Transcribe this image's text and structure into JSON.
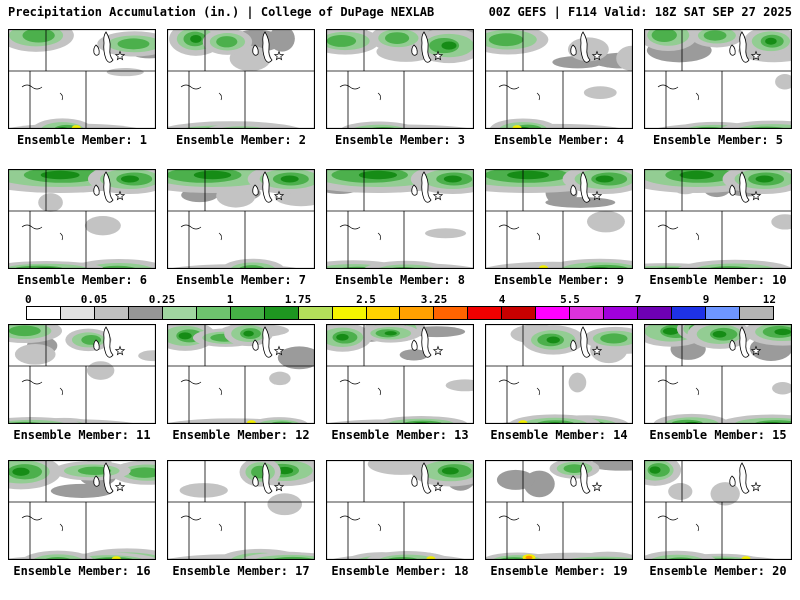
{
  "header": {
    "title_left": "Precipitation Accumulation (in.) | College of DuPage NEXLAB",
    "title_right": "00Z GEFS | F114 Valid: 18Z SAT SEP 27 2025"
  },
  "panels": [
    {
      "label": "Ensemble Member: 1"
    },
    {
      "label": "Ensemble Member: 2"
    },
    {
      "label": "Ensemble Member: 3"
    },
    {
      "label": "Ensemble Member: 4"
    },
    {
      "label": "Ensemble Member: 5"
    },
    {
      "label": "Ensemble Member: 6"
    },
    {
      "label": "Ensemble Member: 7"
    },
    {
      "label": "Ensemble Member: 8"
    },
    {
      "label": "Ensemble Member: 9"
    },
    {
      "label": "Ensemble Member: 10"
    },
    {
      "label": "Ensemble Member: 11"
    },
    {
      "label": "Ensemble Member: 12"
    },
    {
      "label": "Ensemble Member: 13"
    },
    {
      "label": "Ensemble Member: 14"
    },
    {
      "label": "Ensemble Member: 15"
    },
    {
      "label": "Ensemble Member: 16"
    },
    {
      "label": "Ensemble Member: 17"
    },
    {
      "label": "Ensemble Member: 18"
    },
    {
      "label": "Ensemble Member: 19"
    },
    {
      "label": "Ensemble Member: 20"
    }
  ],
  "colorbar": {
    "tick_labels": [
      "0",
      "0.05",
      "0.25",
      "1",
      "1.75",
      "2.5",
      "3.25",
      "4",
      "5.5",
      "7",
      "9",
      "12"
    ],
    "segment_colors": [
      "#ffffff",
      "#e1e1e1",
      "#c0c0c0",
      "#969696",
      "#a0d6a0",
      "#6ec46e",
      "#46b046",
      "#1e9620",
      "#b4e05a",
      "#f5f500",
      "#ffd200",
      "#ffa000",
      "#ff6400",
      "#f00000",
      "#c80000",
      "#ff00ff",
      "#dc32dc",
      "#a000dc",
      "#6e00b4",
      "#1e32e6",
      "#6e96ff",
      "#b4b4b4"
    ]
  },
  "precip_colors": {
    "halo_gray": "#c3c3c3",
    "gray": "#9b9b9b",
    "light_green": "#93cd93",
    "green": "#4cb04c",
    "dark_green": "#168c16",
    "yellow": "#f2ef00",
    "orange": "#ff9000"
  },
  "colors": {
    "background": "#ffffff",
    "text": "#000000",
    "border": "#000000"
  }
}
